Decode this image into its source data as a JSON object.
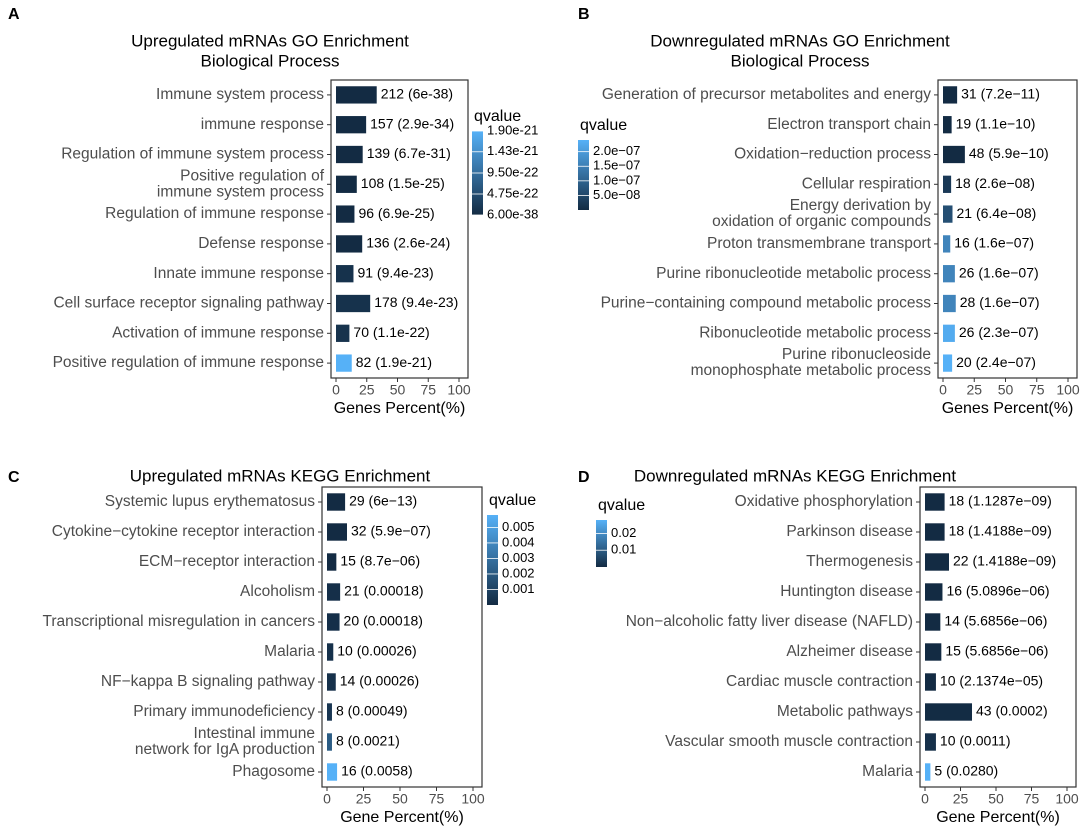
{
  "chart_data": [
    {
      "type": "bar",
      "panel": "A",
      "title": "Upregulated mRNAs GO Enrichment",
      "subtitle": "Biological Process",
      "xlabel": "Genes Percent(%)",
      "colorbar_title": "qvalue",
      "categories": [
        "Immune system process",
        "immune response",
        "Regulation of immune system process",
        "Positive regulation of\nimmune system process",
        "Regulation of immune response",
        "Defense response",
        "Innate immune response",
        "Cell surface receptor signaling pathway",
        "Activation of immune response",
        "Positive regulation of immune response"
      ],
      "values": [
        33.1,
        24.5,
        21.7,
        16.9,
        15,
        21.3,
        14.2,
        27.8,
        10.9,
        12.8
      ],
      "qvalues": [
        6e-38,
        2.9e-34,
        6.7e-31,
        1.5e-25,
        6.9e-25,
        2.6e-24,
        9.4e-23,
        9.4e-23,
        1.1e-22,
        1.9e-21
      ],
      "bar_labels": [
        "212 (6e-38)",
        "157 (2.9e-34)",
        "139 (6.7e-31)",
        "108 (1.5e-25)",
        "96 (6.9e-25)",
        "136 (2.6e-24)",
        "91 (9.4e-23)",
        "178 (9.4e-23)",
        "70 (1.1e-22)",
        "82 (1.9e-21)"
      ],
      "xlim": [
        0,
        100
      ],
      "xticks": [
        0,
        25,
        50,
        75,
        100
      ],
      "clim": [
        6e-38,
        1.9e-21
      ],
      "cticks": [
        {
          "value": 1.9e-21,
          "label": "1.90e-21"
        },
        {
          "value": 1.43e-21,
          "label": "1.43e-21"
        },
        {
          "value": 9.5e-22,
          "label": "9.50e-22"
        },
        {
          "value": 4.75e-22,
          "label": "4.75e-22"
        },
        {
          "value": 6e-38,
          "label": "6.00e-38"
        }
      ],
      "color_low": "#132b43",
      "color_high": "#56b1f7"
    },
    {
      "type": "bar",
      "panel": "B",
      "title": "Downregulated mRNAs GO Enrichment",
      "subtitle": "Biological Process",
      "xlabel": "Genes Percent(%)",
      "colorbar_title": "qvalue",
      "categories": [
        "Generation of precursor metabolites and energy",
        "Electron transport chain",
        "Oxidation−reduction process",
        "Cellular respiration",
        "Energy derivation by\noxidation of organic compounds",
        "Proton transmembrane transport",
        "Purine ribonucleotide metabolic process",
        "Purine−containing compound metabolic process",
        "Ribonucleotide metabolic process",
        "Purine ribonucleoside\nmonophosphate metabolic process"
      ],
      "values": [
        11.3,
        6.9,
        17.5,
        6.5,
        7.6,
        5.8,
        9.5,
        10.2,
        9.5,
        7.3
      ],
      "qvalues": [
        7.2e-11,
        1.1e-10,
        5.9e-10,
        2.6e-08,
        6.4e-08,
        1.6e-07,
        1.6e-07,
        1.6e-07,
        2.3e-07,
        2.4e-07
      ],
      "bar_labels": [
        "31 (7.2e−11)",
        "19 (1.1e−10)",
        "48 (5.9e−10)",
        "18 (2.6e−08)",
        "21 (6.4e−08)",
        "16 (1.6e−07)",
        "26 (1.6e−07)",
        "28 (1.6e−07)",
        "26 (2.3e−07)",
        "20 (2.4e−07)"
      ],
      "xlim": [
        0,
        100
      ],
      "xticks": [
        0,
        25,
        50,
        75,
        100
      ],
      "clim": [
        7.2e-11,
        2.4e-07
      ],
      "cticks": [
        {
          "value": 2e-07,
          "label": "2.0e−07"
        },
        {
          "value": 1.5e-07,
          "label": "1.5e−07"
        },
        {
          "value": 1e-07,
          "label": "1.0e−07"
        },
        {
          "value": 5e-08,
          "label": "5.0e−08"
        }
      ],
      "color_low": "#132b43",
      "color_high": "#56b1f7"
    },
    {
      "type": "bar",
      "panel": "C",
      "title": "Upregulated mRNAs KEGG Enrichment",
      "xlabel": "Gene Percent(%)",
      "colorbar_title": "qvalue",
      "categories": [
        "Systemic lupus erythematosus",
        "Cytokine−cytokine receptor interaction",
        "ECM−receptor interaction",
        "Alcoholism",
        "Transcriptional misregulation in cancers",
        "Malaria",
        "NF−kappa B signaling pathway",
        "Primary immunodeficiency",
        "Intestinal immune\nnetwork for IgA production",
        "Phagosome"
      ],
      "values": [
        12.4,
        13.7,
        6.4,
        9,
        8.6,
        4.3,
        6,
        3.4,
        3.4,
        6.9
      ],
      "qvalues": [
        6e-13,
        5.9e-07,
        8.7e-06,
        0.00018,
        0.00018,
        0.00026,
        0.00026,
        0.00049,
        0.0021,
        0.0058
      ],
      "bar_labels": [
        "29 (6e−13)",
        "32 (5.9e−07)",
        "15 (8.7e−06)",
        "21 (0.00018)",
        "20 (0.00018)",
        "10 (0.00026)",
        "14 (0.00026)",
        "8 (0.00049)",
        "8 (0.0021)",
        "16 (0.0058)"
      ],
      "xlim": [
        0,
        100
      ],
      "xticks": [
        0,
        25,
        50,
        75,
        100
      ],
      "clim": [
        6e-13,
        0.0058
      ],
      "cticks": [
        0.005,
        0.004,
        0.003,
        0.002,
        0.001
      ],
      "color_low": "#132b43",
      "color_high": "#56b1f7"
    },
    {
      "type": "bar",
      "panel": "D",
      "title": "Downregulated mRNAs KEGG Enrichment",
      "xlabel": "Gene Percent(%)",
      "colorbar_title": "qvalue",
      "categories": [
        "Oxidative phosphorylation",
        "Parkinson disease",
        "Thermogenesis",
        "Huntington disease",
        "Non−alcoholic fatty liver disease (NAFLD)",
        "Alzheimer disease",
        "Cardiac muscle contraction",
        "Metabolic pathways",
        "Vascular smooth muscle contraction",
        "Malaria"
      ],
      "values": [
        13.8,
        13.8,
        16.9,
        12.3,
        10.8,
        11.5,
        7.7,
        33.1,
        7.7,
        3.8
      ],
      "qvalues": [
        1.1287e-09,
        1.4188e-09,
        1.4188e-09,
        5.0896e-06,
        5.6856e-06,
        5.6856e-06,
        2.1374e-05,
        0.0002,
        0.0011,
        0.028
      ],
      "bar_labels": [
        "18 (1.1287e−09)",
        "18 (1.4188e−09)",
        "22 (1.4188e−09)",
        "16 (5.0896e−06)",
        "14 (5.6856e−06)",
        "15 (5.6856e−06)",
        "10 (2.1374e−05)",
        "43 (0.0002)",
        "10 (0.0011)",
        "5 (0.0280)"
      ],
      "xlim": [
        0,
        100
      ],
      "xticks": [
        0,
        25,
        50,
        75,
        100
      ],
      "clim": [
        1.1287e-09,
        0.028
      ],
      "cticks": [
        0.02,
        0.01
      ],
      "color_low": "#132b43",
      "color_high": "#56b1f7"
    }
  ]
}
